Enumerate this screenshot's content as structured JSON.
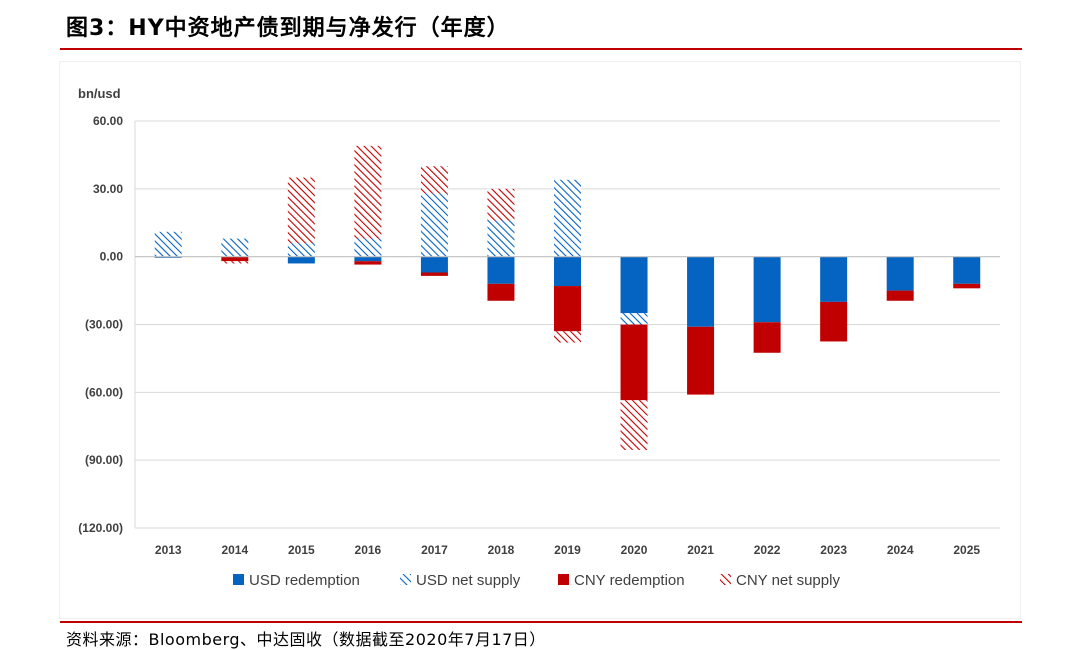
{
  "title": "图3：HY中资地产债到期与净发行（年度）",
  "source": "资料来源：Bloomberg、中达固收（数据截至2020年7月17日）",
  "colors": {
    "usd": "#0563c1",
    "cny": "#c00000",
    "rule": "#c00000",
    "grid": "#d9d9d9"
  },
  "chart_data": {
    "type": "bar",
    "stacked": true,
    "unit_label": "bn/usd",
    "ylim": [
      -120,
      60
    ],
    "yticks": [
      60,
      30,
      0,
      -30,
      -60,
      -90,
      -120
    ],
    "ytick_labels": [
      "60.00",
      "30.00",
      "0.00",
      "(30.00)",
      "(60.00)",
      "(90.00)",
      "(120.00)"
    ],
    "grid": true,
    "legend_position": "bottom",
    "categories": [
      "2013",
      "2014",
      "2015",
      "2016",
      "2017",
      "2018",
      "2019",
      "2020",
      "2021",
      "2022",
      "2023",
      "2024",
      "2025"
    ],
    "series": [
      {
        "name": "USD redemption",
        "pattern": "solid",
        "color": "#0563c1",
        "values": [
          -0.5,
          0,
          -3,
          -2,
          -7,
          -12,
          -13,
          -25,
          -31,
          -29,
          -20,
          -15,
          -12
        ]
      },
      {
        "name": "USD net supply",
        "pattern": "hatched",
        "color": "#0563c1",
        "values": [
          11,
          8,
          6,
          8,
          28,
          16,
          34,
          -5,
          0,
          0,
          0,
          0,
          0
        ]
      },
      {
        "name": "CNY redemption",
        "pattern": "solid",
        "color": "#c00000",
        "values": [
          0,
          -2,
          0,
          -1.5,
          -1.5,
          -7.5,
          -20,
          -33.5,
          -30,
          -13.5,
          -17.5,
          -4.5,
          -2
        ]
      },
      {
        "name": "CNY net supply",
        "pattern": "hatched",
        "color": "#c00000",
        "values": [
          0,
          -1,
          29,
          41,
          12,
          14,
          -5,
          -22,
          0,
          0,
          0,
          0,
          0
        ]
      }
    ]
  }
}
